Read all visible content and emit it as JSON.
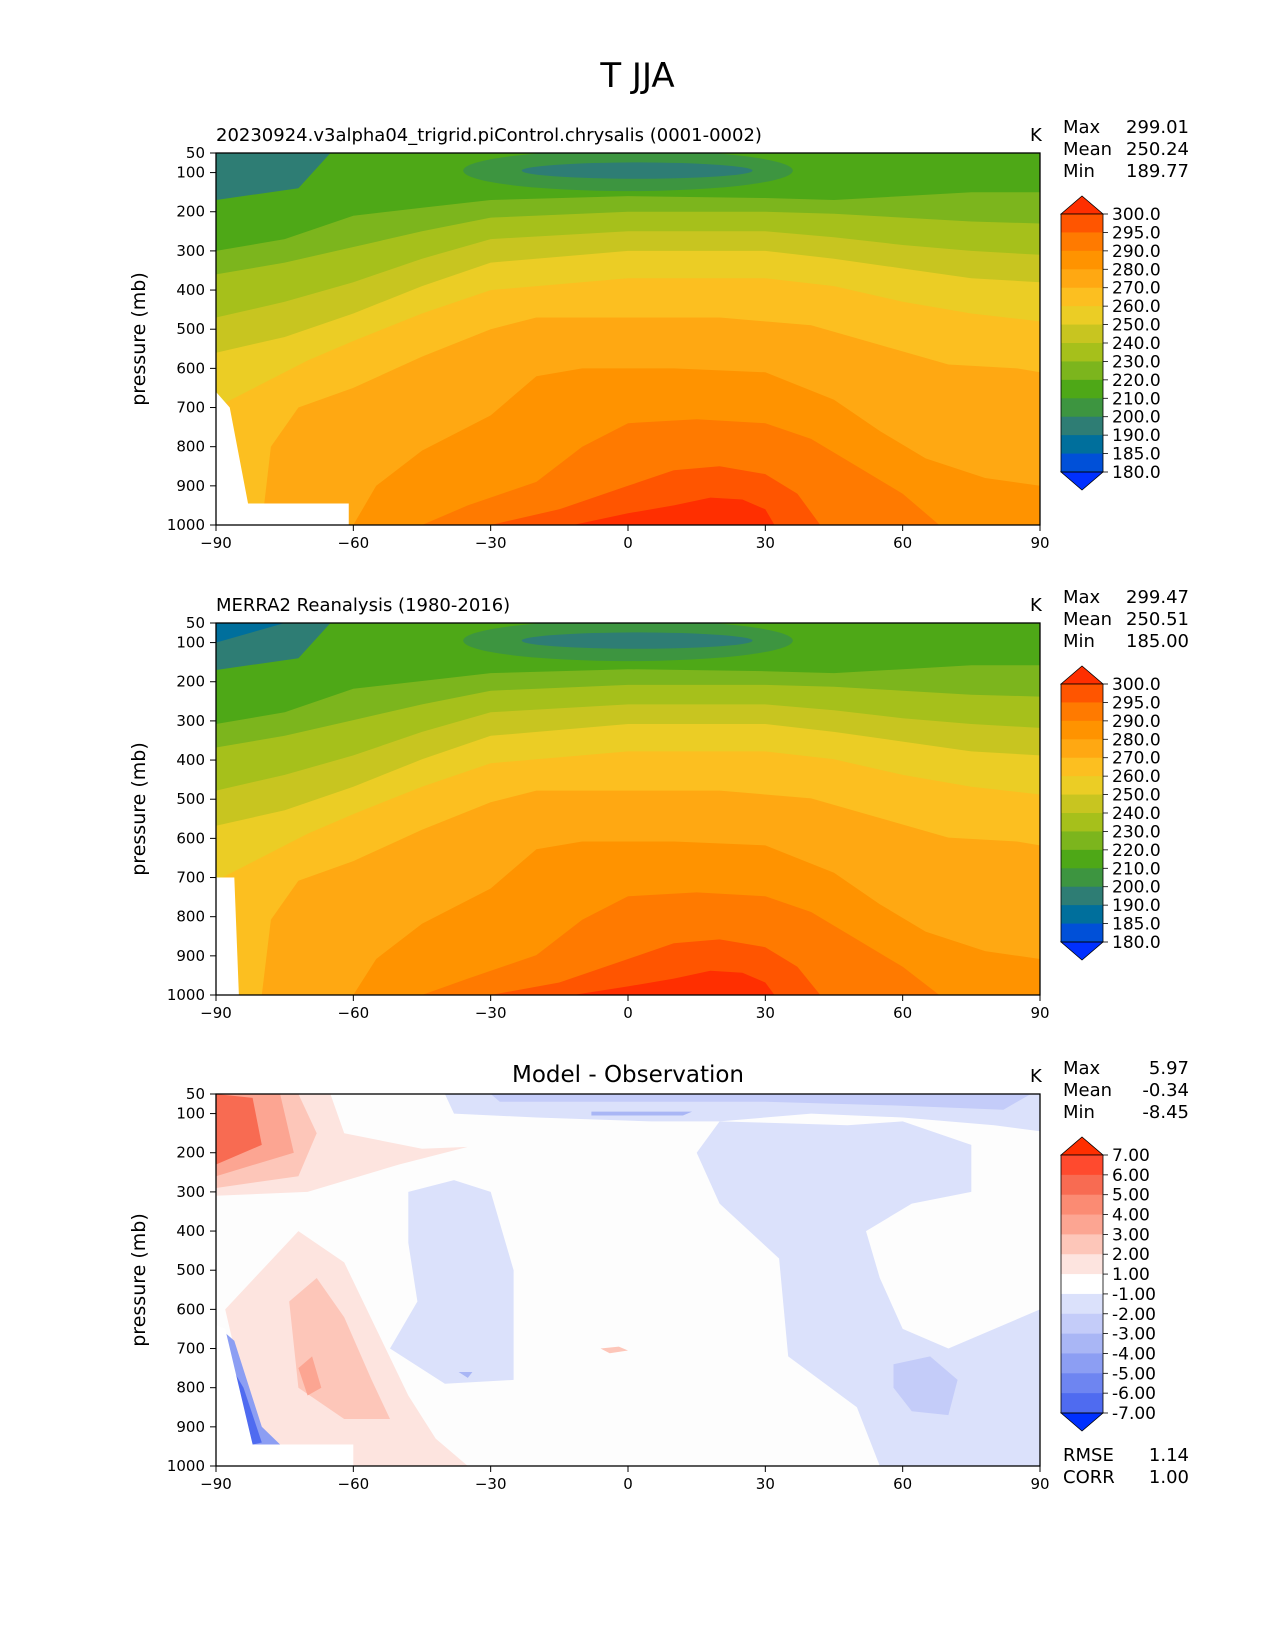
{
  "figure": {
    "title": "T JJA"
  },
  "panels": [
    {
      "id": "model",
      "title_left": "20230924.v3alpha04_trigrid.piControl.chrysalis (0001-0002)",
      "title_center": "",
      "units": "K",
      "stats": [
        {
          "label": "Max",
          "value": "299.01"
        },
        {
          "label": "Mean",
          "value": "250.24"
        },
        {
          "label": "Min",
          "value": "189.77"
        }
      ],
      "footer_stats": [],
      "ylabel": "pressure (mb)",
      "colorbar": {
        "labels": [
          "300.0",
          "295.0",
          "290.0",
          "280.0",
          "270.0",
          "260.0",
          "250.0",
          "240.0",
          "230.0",
          "220.0",
          "210.0",
          "200.0",
          "190.0",
          "185.0",
          "180.0"
        ],
        "colors": [
          "#ff2f00",
          "#ff5500",
          "#ff7a00",
          "#ff9300",
          "#ffa812",
          "#fcbf20",
          "#ebcd25",
          "#c8c520",
          "#a6c01b",
          "#7cb51d",
          "#4ea817",
          "#3d9540",
          "#2e7d74",
          "#006f9c",
          "#0050d8",
          "#0030ff"
        ]
      }
    },
    {
      "id": "obs",
      "title_left": "MERRA2 Reanalysis (1980-2016)",
      "title_center": "",
      "units": "K",
      "stats": [
        {
          "label": "Max",
          "value": "299.47"
        },
        {
          "label": "Mean",
          "value": "250.51"
        },
        {
          "label": "Min",
          "value": "185.00"
        }
      ],
      "footer_stats": [],
      "ylabel": "pressure (mb)",
      "colorbar": {
        "labels": [
          "300.0",
          "295.0",
          "290.0",
          "280.0",
          "270.0",
          "260.0",
          "250.0",
          "240.0",
          "230.0",
          "220.0",
          "210.0",
          "200.0",
          "190.0",
          "185.0",
          "180.0"
        ],
        "colors": [
          "#ff2f00",
          "#ff5500",
          "#ff7a00",
          "#ff9300",
          "#ffa812",
          "#fcbf20",
          "#ebcd25",
          "#c8c520",
          "#a6c01b",
          "#7cb51d",
          "#4ea817",
          "#3d9540",
          "#2e7d74",
          "#006f9c",
          "#0050d8",
          "#0030ff"
        ]
      }
    },
    {
      "id": "diff",
      "title_left": "",
      "title_center": "Model - Observation",
      "units": "K",
      "stats": [
        {
          "label": "Max",
          "value": "5.97"
        },
        {
          "label": "Mean",
          "value": "-0.34"
        },
        {
          "label": "Min",
          "value": "-8.45"
        }
      ],
      "footer_stats": [
        {
          "label": "RMSE",
          "value": "1.14"
        },
        {
          "label": "CORR",
          "value": "1.00"
        }
      ],
      "ylabel": "pressure (mb)",
      "colorbar": {
        "labels": [
          "7.00",
          "6.00",
          "5.00",
          "4.00",
          "3.00",
          "2.00",
          "1.00",
          "-1.00",
          "-2.00",
          "-3.00",
          "-4.00",
          "-5.00",
          "-6.00",
          "-7.00"
        ],
        "colors": [
          "#ff2f00",
          "#ff4a2e",
          "#f86b52",
          "#fb8b73",
          "#fca592",
          "#fdc6b9",
          "#fde4df",
          "#ffffff",
          "#dbe1fb",
          "#c4ccf9",
          "#a9b6f5",
          "#8c9ef3",
          "#6e85f1",
          "#4f6bf0",
          "#0030ff"
        ]
      }
    }
  ],
  "chart_data": [
    {
      "type": "heatmap",
      "title": "20230924.v3alpha04_trigrid.piControl.chrysalis (0001-0002)",
      "xlabel": "",
      "ylabel": "pressure (mb)",
      "x_ticks": [
        "−90",
        "−60",
        "−30",
        "0",
        "30",
        "60",
        "90"
      ],
      "y_ticks": [
        "50",
        "100",
        "200",
        "300",
        "400",
        "500",
        "600",
        "700",
        "800",
        "900",
        "1000"
      ],
      "xlim": [
        -90,
        90
      ],
      "ylim": [
        1000,
        50
      ],
      "levels": [
        180,
        185,
        190,
        200,
        210,
        220,
        230,
        240,
        250,
        260,
        270,
        280,
        290,
        295,
        300
      ],
      "max": 299.01,
      "mean": 250.24,
      "min": 189.77,
      "units": "K"
    },
    {
      "type": "heatmap",
      "title": "MERRA2 Reanalysis (1980-2016)",
      "xlabel": "",
      "ylabel": "pressure (mb)",
      "x_ticks": [
        "−90",
        "−60",
        "−30",
        "0",
        "30",
        "60",
        "90"
      ],
      "y_ticks": [
        "50",
        "100",
        "200",
        "300",
        "400",
        "500",
        "600",
        "700",
        "800",
        "900",
        "1000"
      ],
      "xlim": [
        -90,
        90
      ],
      "ylim": [
        1000,
        50
      ],
      "levels": [
        180,
        185,
        190,
        200,
        210,
        220,
        230,
        240,
        250,
        260,
        270,
        280,
        290,
        295,
        300
      ],
      "max": 299.47,
      "mean": 250.51,
      "min": 185.0,
      "units": "K"
    },
    {
      "type": "heatmap",
      "title": "Model - Observation",
      "xlabel": "",
      "ylabel": "pressure (mb)",
      "x_ticks": [
        "−90",
        "−60",
        "−30",
        "0",
        "30",
        "60",
        "90"
      ],
      "y_ticks": [
        "50",
        "100",
        "200",
        "300",
        "400",
        "500",
        "600",
        "700",
        "800",
        "900",
        "1000"
      ],
      "xlim": [
        -90,
        90
      ],
      "ylim": [
        1000,
        50
      ],
      "levels": [
        -7,
        -6,
        -5,
        -4,
        -3,
        -2,
        -1,
        1,
        2,
        3,
        4,
        5,
        6,
        7
      ],
      "max": 5.97,
      "mean": -0.34,
      "min": -8.45,
      "rmse": 1.14,
      "corr": 1.0,
      "units": "K"
    }
  ]
}
